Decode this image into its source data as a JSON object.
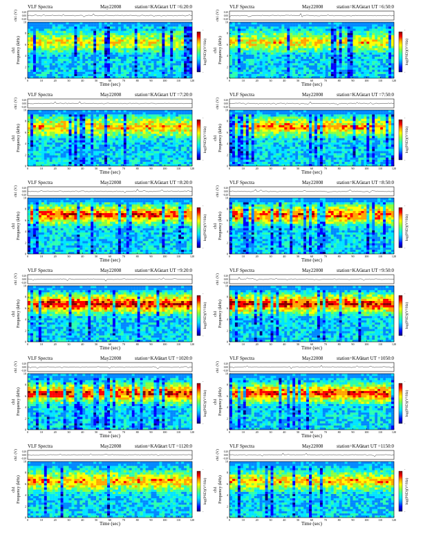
{
  "panels": [
    {
      "app": "VLF Spectra",
      "date": "May22008",
      "station": "station=KAG",
      "start": "start  UT =6:20:0"
    },
    {
      "app": "VLF Spectra",
      "date": "May22008",
      "station": "station=KAG",
      "start": "start  UT =6:50:0"
    },
    {
      "app": "VLF Spectra",
      "date": "May22008",
      "station": "station=KAG",
      "start": "start  UT =7:20:0"
    },
    {
      "app": "VLF Spectra",
      "date": "May22008",
      "station": "station=KAG",
      "start": "start  UT =7:50:0"
    },
    {
      "app": "VLF Spectra",
      "date": "May22008",
      "station": "station=KAG",
      "start": "start  UT =8:20:0"
    },
    {
      "app": "VLF Spectra",
      "date": "May22008",
      "station": "station=KAG",
      "start": "start  UT =8:50:0"
    },
    {
      "app": "VLF Spectra",
      "date": "May22008",
      "station": "station=KAG",
      "start": "start  UT =9:20:0"
    },
    {
      "app": "VLF Spectra",
      "date": "May22008",
      "station": "station=KAG",
      "start": "start  UT =9:50:0"
    },
    {
      "app": "VLF Spectra",
      "date": "May22008",
      "station": "station=KAG",
      "start": "start  UT =1020:0"
    },
    {
      "app": "VLF Spectra",
      "date": "May22008",
      "station": "station=KAG",
      "start": "start  UT =1050:0"
    },
    {
      "app": "VLF Spectra",
      "date": "May22008",
      "station": "station=KAG",
      "start": "start  UT =1120:0"
    },
    {
      "app": "VLF Spectra",
      "date": "May22008",
      "station": "station=KAG",
      "start": "start  UT =1150:0"
    }
  ],
  "axes": {
    "waveform_ylabel": "ch1 (V)",
    "waveform_ticks": [
      "0.20",
      "0.00",
      "-0.20"
    ],
    "spectrum_ylabel": "Frequency  (kHz)",
    "channel_label": "ch1",
    "xlabel": "Time  (sec)",
    "colorbar_label": "log(PSD)(V²/Hz)",
    "colorbar_ticks": [
      "-",
      "-"
    ]
  },
  "colors": {
    "scale": [
      "#00007a",
      "#0000ff",
      "#0088ff",
      "#00e5ff",
      "#2bffb0",
      "#8cff3c",
      "#ffff00",
      "#ffa500",
      "#ff0000",
      "#8b0000"
    ],
    "background": "#ffffff"
  },
  "chart_data": [
    {
      "type": "heatmap",
      "title": "VLF Spectra  May22008  station=KAG  start  UT =6:20:0",
      "xlabel": "Time  (sec)",
      "ylabel": "Frequency  (kHz)",
      "x_ticks": [
        0,
        10,
        20,
        30,
        40,
        50,
        60,
        70,
        80,
        90,
        100,
        110,
        120
      ],
      "y_ticks": [
        0,
        2,
        4,
        6,
        8,
        10
      ],
      "xlim": [
        0,
        120
      ],
      "ylim": [
        0,
        10
      ],
      "band_center_khz": 6.5,
      "band_level": 0.62
    },
    {
      "type": "heatmap",
      "title": "VLF Spectra  May22008  station=KAG  start  UT =6:50:0",
      "xlabel": "Time  (sec)",
      "ylabel": "Frequency  (kHz)",
      "x_ticks": [
        0,
        10,
        20,
        30,
        40,
        50,
        60,
        70,
        80,
        90,
        100,
        110,
        120
      ],
      "y_ticks": [
        0,
        2,
        4,
        6,
        8,
        10
      ],
      "xlim": [
        0,
        120
      ],
      "ylim": [
        0,
        10
      ],
      "band_center_khz": 6.5,
      "band_level": 0.64
    },
    {
      "type": "heatmap",
      "title": "VLF Spectra  May22008  station=KAG  start  UT =7:20:0",
      "xlabel": "Time  (sec)",
      "ylabel": "Frequency  (kHz)",
      "x_ticks": [
        0,
        10,
        20,
        30,
        40,
        50,
        60,
        70,
        80,
        90,
        100,
        110,
        120
      ],
      "y_ticks": [
        0,
        2,
        4,
        6,
        8,
        10
      ],
      "xlim": [
        0,
        120
      ],
      "ylim": [
        0,
        10
      ],
      "band_center_khz": 7.0,
      "band_level": 0.68
    },
    {
      "type": "heatmap",
      "title": "VLF Spectra  May22008  station=KAG  start  UT =7:50:0",
      "xlabel": "Time  (sec)",
      "ylabel": "Frequency  (kHz)",
      "x_ticks": [
        0,
        10,
        20,
        30,
        40,
        50,
        60,
        70,
        80,
        90,
        100,
        110,
        120
      ],
      "y_ticks": [
        0,
        2,
        4,
        6,
        8,
        10
      ],
      "xlim": [
        0,
        120
      ],
      "ylim": [
        0,
        10
      ],
      "band_center_khz": 7.0,
      "band_level": 0.72
    },
    {
      "type": "heatmap",
      "title": "VLF Spectra  May22008  station=KAG  start  UT =8:20:0",
      "xlabel": "Time  (sec)",
      "ylabel": "Frequency  (kHz)",
      "x_ticks": [
        0,
        10,
        20,
        30,
        40,
        50,
        60,
        70,
        80,
        90,
        100,
        110,
        120
      ],
      "y_ticks": [
        0,
        2,
        4,
        6,
        8,
        10
      ],
      "xlim": [
        0,
        120
      ],
      "ylim": [
        0,
        10
      ],
      "band_center_khz": 7.0,
      "band_level": 0.8
    },
    {
      "type": "heatmap",
      "title": "VLF Spectra  May22008  station=KAG  start  UT =8:50:0",
      "xlabel": "Time  (sec)",
      "ylabel": "Frequency  (kHz)",
      "x_ticks": [
        0,
        10,
        20,
        30,
        40,
        50,
        60,
        70,
        80,
        90,
        100,
        110,
        120
      ],
      "y_ticks": [
        0,
        2,
        4,
        6,
        8,
        10
      ],
      "xlim": [
        0,
        120
      ],
      "ylim": [
        0,
        10
      ],
      "band_center_khz": 7.0,
      "band_level": 0.78
    },
    {
      "type": "heatmap",
      "title": "VLF Spectra  May22008  station=KAG  start  UT =9:20:0",
      "xlabel": "Time  (sec)",
      "ylabel": "Frequency  (kHz)",
      "x_ticks": [
        0,
        10,
        20,
        30,
        40,
        50,
        60,
        70,
        80,
        90,
        100,
        110,
        120
      ],
      "y_ticks": [
        0,
        2,
        4,
        6,
        8,
        10
      ],
      "xlim": [
        0,
        120
      ],
      "ylim": [
        0,
        10
      ],
      "band_center_khz": 6.8,
      "band_level": 0.86
    },
    {
      "type": "heatmap",
      "title": "VLF Spectra  May22008  station=KAG  start  UT =9:50:0",
      "xlabel": "Time  (sec)",
      "ylabel": "Frequency  (kHz)",
      "x_ticks": [
        0,
        10,
        20,
        30,
        40,
        50,
        60,
        70,
        80,
        90,
        100,
        110,
        120
      ],
      "y_ticks": [
        0,
        2,
        4,
        6,
        8,
        10
      ],
      "xlim": [
        0,
        120
      ],
      "ylim": [
        0,
        10
      ],
      "band_center_khz": 6.8,
      "band_level": 0.85
    },
    {
      "type": "heatmap",
      "title": "VLF Spectra  May22008  station=KAG  start  UT =1020:0",
      "xlabel": "Time  (sec)",
      "ylabel": "Frequency  (kHz)",
      "x_ticks": [
        0,
        10,
        20,
        30,
        40,
        50,
        60,
        70,
        80,
        90,
        100,
        110,
        120
      ],
      "y_ticks": [
        0,
        2,
        4,
        6,
        8,
        10
      ],
      "xlim": [
        0,
        120
      ],
      "ylim": [
        0,
        10
      ],
      "band_center_khz": 6.5,
      "band_level": 0.84
    },
    {
      "type": "heatmap",
      "title": "VLF Spectra  May22008  station=KAG  start  UT =1050:0",
      "xlabel": "Time  (sec)",
      "ylabel": "Frequency  (kHz)",
      "x_ticks": [
        0,
        10,
        20,
        30,
        40,
        50,
        60,
        70,
        80,
        90,
        100,
        110,
        120
      ],
      "y_ticks": [
        0,
        2,
        4,
        6,
        8,
        10
      ],
      "xlim": [
        0,
        120
      ],
      "ylim": [
        0,
        10
      ],
      "band_center_khz": 6.5,
      "band_level": 0.8
    },
    {
      "type": "heatmap",
      "title": "VLF Spectra  May22008  station=KAG  start  UT =1120:0",
      "xlabel": "Time  (sec)",
      "ylabel": "Frequency  (kHz)",
      "x_ticks": [
        0,
        10,
        20,
        30,
        40,
        50,
        60,
        70,
        80,
        90,
        100,
        110,
        120
      ],
      "y_ticks": [
        0,
        2,
        4,
        6,
        8,
        10
      ],
      "xlim": [
        0,
        120
      ],
      "ylim": [
        0,
        10
      ],
      "band_center_khz": 6.5,
      "band_level": 0.7
    },
    {
      "type": "heatmap",
      "title": "VLF Spectra  May22008  station=KAG  start  UT =1150:0",
      "xlabel": "Time  (sec)",
      "ylabel": "Frequency  (kHz)",
      "x_ticks": [
        0,
        10,
        20,
        30,
        40,
        50,
        60,
        70,
        80,
        90,
        100,
        110,
        120
      ],
      "y_ticks": [
        0,
        2,
        4,
        6,
        8,
        10
      ],
      "xlim": [
        0,
        120
      ],
      "ylim": [
        0,
        10
      ],
      "band_center_khz": 6.5,
      "band_level": 0.68
    }
  ]
}
